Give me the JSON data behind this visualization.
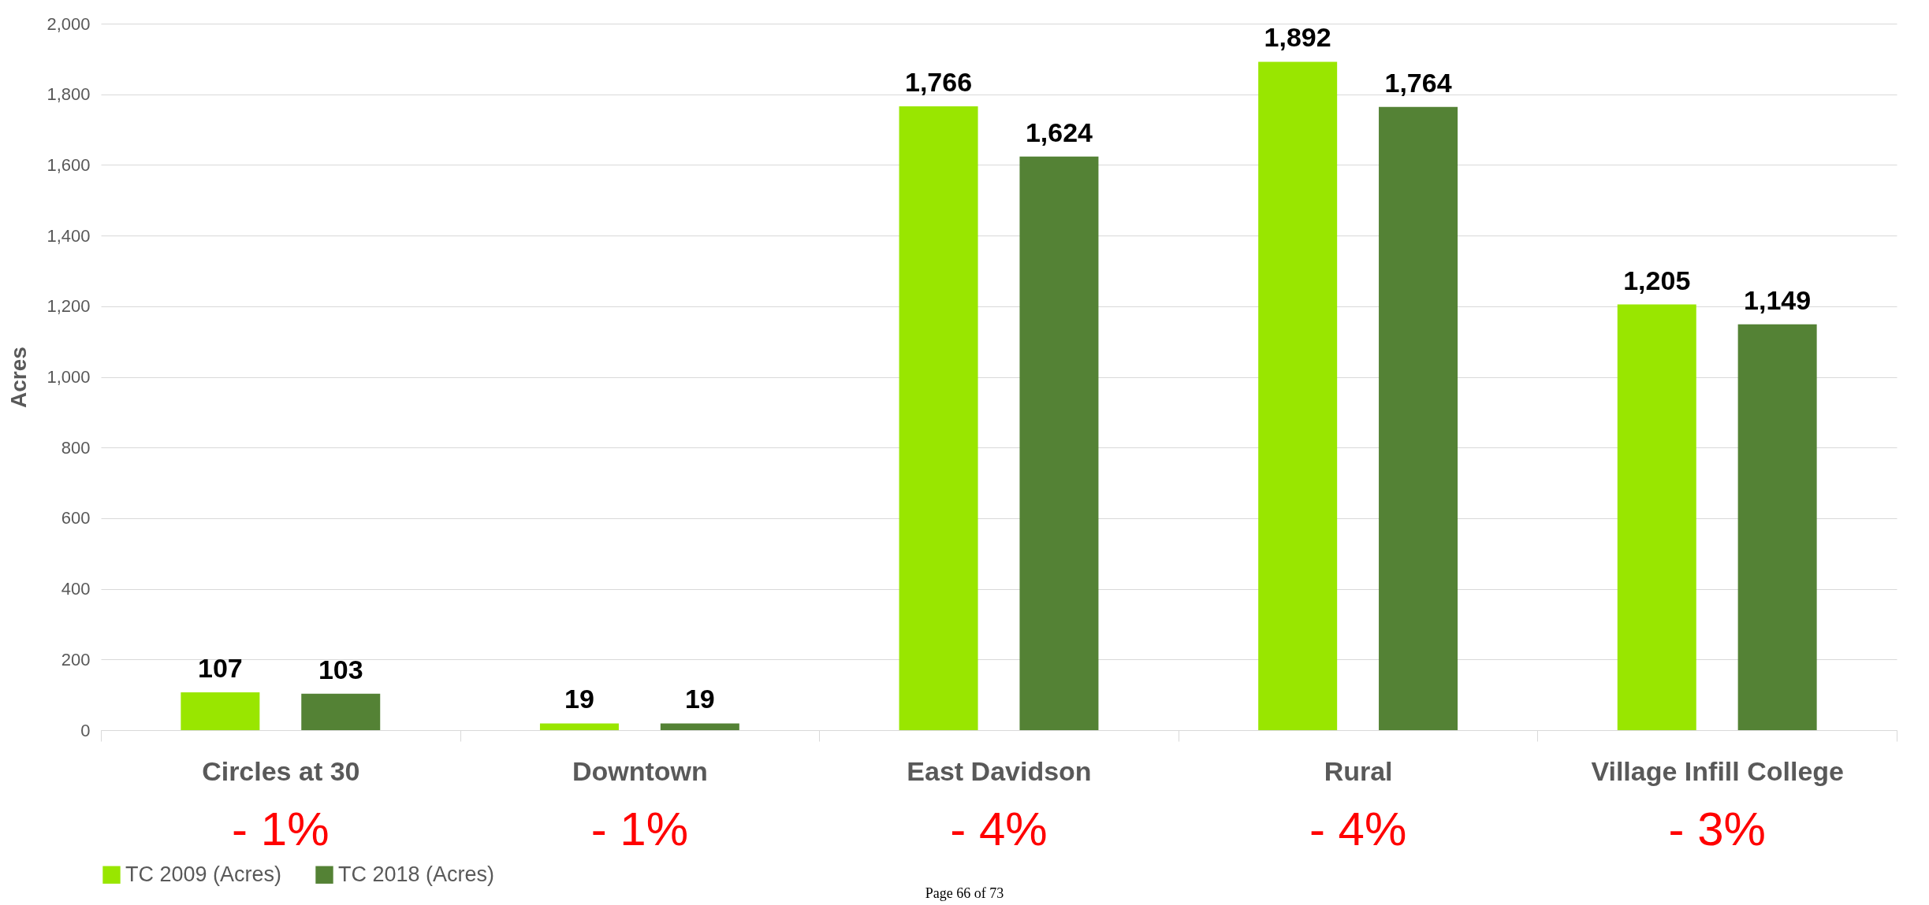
{
  "chart_data": {
    "type": "bar",
    "ylabel": "Acres",
    "categories": [
      "Circles at 30",
      "Downtown",
      "East Davidson",
      "Rural",
      "Village Infill College"
    ],
    "series": [
      {
        "name": "TC 2009 (Acres)",
        "color": "#99e600",
        "values": [
          107,
          19,
          1766,
          1892,
          1205
        ],
        "value_labels": [
          "107",
          "19",
          "1,766",
          "1,892",
          "1,205"
        ]
      },
      {
        "name": "TC 2018 (Acres)",
        "color": "#548235",
        "values": [
          103,
          19,
          1624,
          1764,
          1149
        ],
        "value_labels": [
          "103",
          "19",
          "1,624",
          "1,764",
          "1,149"
        ]
      }
    ],
    "ylim": [
      0,
      2000
    ],
    "yticks": [
      0,
      200,
      400,
      600,
      800,
      {
        "value": 1000,
        "label": "1,000"
      },
      {
        "value": 1200,
        "label": "1,200"
      },
      {
        "value": 1400,
        "label": "1,400"
      },
      {
        "value": 1600,
        "label": "1,600"
      },
      {
        "value": 1800,
        "label": "1,800"
      },
      {
        "value": 2000,
        "label": "2,000"
      }
    ],
    "grid": "y",
    "legend": "bottom",
    "annotations": [
      "- 1%",
      "- 1%",
      "- 4%",
      "- 4%",
      "- 3%",
      "Page 66 of 73"
    ]
  }
}
